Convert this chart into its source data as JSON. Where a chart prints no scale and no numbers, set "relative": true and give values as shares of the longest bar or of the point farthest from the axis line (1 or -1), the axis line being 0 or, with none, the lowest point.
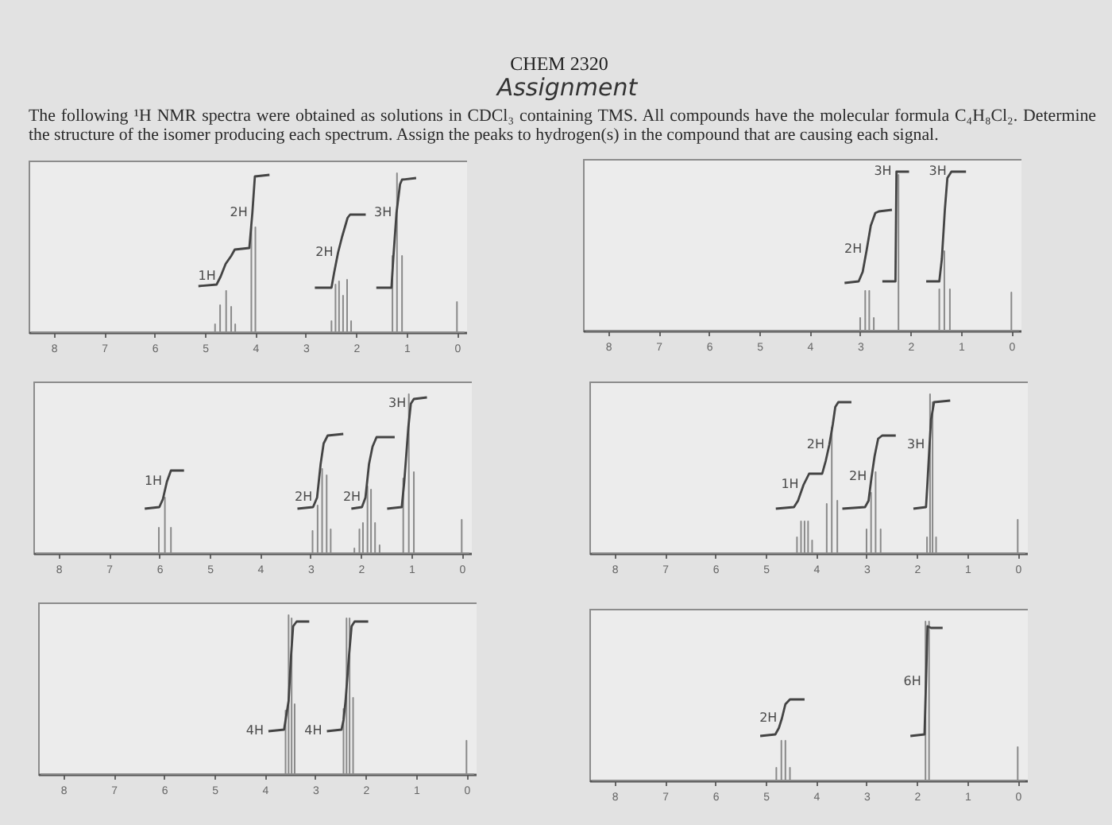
{
  "chart_data": [
    {
      "type": "other",
      "title": "CHEM 2320",
      "subtitle": "Assignment",
      "annotations": [
        "The following ¹H NMR spectra were obtained as solutions in CDCl₃ containing TMS. All compounds have the molecular formula C₄H₈Cl₂. Determine the structure of the isomer producing each spectrum. Assign the peaks to hydrogen(s) in the compound that are causing each signal."
      ]
    },
    {
      "type": "line",
      "relative": true,
      "xlim": [
        8.5,
        -0.2
      ],
      "xticks": [
        8,
        7,
        6,
        5,
        4,
        3,
        2,
        1,
        0
      ],
      "series": [
        {
          "color": "#8a8a8a",
          "x": [
            8.45,
            4.8,
            4.8,
            4.8,
            4.7,
            4.7,
            4.7,
            4.58,
            4.58,
            4.58,
            4.48,
            4.48,
            4.48,
            4.4,
            4.4,
            4.4,
            4.08,
            4.08,
            4.08,
            4.0,
            4.0,
            4.0,
            2.49,
            2.49,
            2.49,
            2.41,
            2.41,
            2.41,
            2.34,
            2.34,
            2.34,
            2.26,
            2.26,
            2.26,
            2.18,
            2.18,
            2.18,
            2.1,
            2.1,
            2.1,
            1.28,
            1.28,
            1.28,
            1.19,
            1.19,
            1.19,
            1.09,
            1.09,
            1.09,
            0,
            0,
            0,
            -0.15
          ],
          "values": [
            0,
            0,
            0.05,
            0,
            0,
            0.17,
            0,
            0,
            0.26,
            0,
            0,
            0.16,
            0,
            0,
            0.05,
            0,
            0,
            0.66,
            0,
            0,
            0.66,
            0,
            0,
            0.07,
            0,
            0,
            0.3,
            0,
            0,
            0.32,
            0,
            0,
            0.23,
            0,
            0,
            0.33,
            0,
            0,
            0.07,
            0,
            0,
            0.48,
            0,
            0,
            1,
            0,
            0,
            0.48,
            0,
            0,
            0.19,
            0,
            0
          ]
        },
        {
          "color": "#444444",
          "x": [
            5.13,
            4.77,
            4.69,
            4.59,
            4.48,
            4.41,
            4.12,
            4.06,
            4.01,
            3.72
          ],
          "values": [
            0.29,
            0.3,
            0.35,
            0.43,
            0.48,
            0.52,
            0.53,
            0.75,
            0.98,
            0.99
          ]
        },
        {
          "color": "#444444",
          "x": [
            2.82,
            2.49,
            2.44,
            2.36,
            2.28,
            2.17,
            2.12,
            1.81
          ],
          "values": [
            0.28,
            0.28,
            0.37,
            0.5,
            0.6,
            0.72,
            0.74,
            0.74
          ]
        },
        {
          "color": "#444444",
          "x": [
            1.6,
            1.3,
            1.26,
            1.2,
            1.13,
            1.09,
            0.81
          ],
          "values": [
            0.28,
            0.28,
            0.48,
            0.75,
            0.93,
            0.96,
            0.97
          ]
        }
      ],
      "annotations": [
        {
          "text": "1H",
          "x": 4.69,
          "y": 0.35
        },
        {
          "text": "2H",
          "x": 4.06,
          "y": 0.75
        },
        {
          "text": "2H",
          "x": 2.36,
          "y": 0.5
        },
        {
          "text": "3H",
          "x": 1.2,
          "y": 0.75
        }
      ]
    },
    {
      "type": "line",
      "relative": true,
      "xlim": [
        8.5,
        -0.2
      ],
      "xticks": [
        8,
        7,
        6,
        5,
        4,
        3,
        2,
        1,
        0
      ],
      "series": [
        {
          "color": "#8a8a8a",
          "x": [
            8.45,
            3.0,
            3.0,
            3.0,
            2.9,
            2.9,
            2.9,
            2.82,
            2.82,
            2.82,
            2.73,
            2.73,
            2.73,
            2.24,
            2.24,
            2.24,
            1.43,
            1.43,
            1.43,
            1.33,
            1.33,
            1.33,
            1.22,
            1.22,
            1.22,
            0,
            0,
            0,
            -0.15
          ],
          "values": [
            0,
            0,
            0.08,
            0,
            0,
            0.25,
            0,
            0,
            0.25,
            0,
            0,
            0.08,
            0,
            0,
            0.98,
            0,
            0,
            0.26,
            0,
            0,
            0.5,
            0,
            0,
            0.26,
            0,
            0,
            0.24,
            0,
            0
          ]
        },
        {
          "color": "#444444",
          "x": [
            3.31,
            3.03,
            2.95,
            2.87,
            2.79,
            2.7,
            2.63,
            2.37
          ],
          "values": [
            0.3,
            0.31,
            0.37,
            0.51,
            0.66,
            0.74,
            0.75,
            0.76
          ]
        },
        {
          "color": "#444444",
          "x": [
            2.56,
            2.3,
            2.29,
            2.28,
            2.03
          ],
          "values": [
            0.31,
            0.31,
            0.66,
            1,
            1
          ]
        },
        {
          "color": "#444444",
          "x": [
            1.69,
            1.43,
            1.38,
            1.32,
            1.27,
            1.19,
            0.9
          ],
          "values": [
            0.31,
            0.31,
            0.45,
            0.76,
            0.96,
            1,
            1
          ]
        }
      ],
      "annotations": [
        {
          "text": "2H",
          "x": 2.87,
          "y": 0.51
        },
        {
          "text": "3H",
          "x": 2.28,
          "y": 1
        },
        {
          "text": "3H",
          "x": 1.19,
          "y": 1
        }
      ]
    },
    {
      "type": "line",
      "relative": true,
      "xlim": [
        8.5,
        -0.2
      ],
      "xticks": [
        8,
        7,
        6,
        5,
        4,
        3,
        2,
        1,
        0
      ],
      "series": [
        {
          "color": "#8a8a8a",
          "x": [
            8.45,
            6.01,
            6.01,
            6.01,
            5.89,
            5.89,
            5.89,
            5.77,
            5.77,
            5.77,
            2.96,
            2.96,
            2.96,
            2.86,
            2.86,
            2.86,
            2.77,
            2.77,
            2.77,
            2.68,
            2.68,
            2.68,
            2.6,
            2.6,
            2.6,
            2.13,
            2.13,
            2.13,
            2.03,
            2.03,
            2.03,
            1.96,
            1.96,
            1.96,
            1.87,
            1.87,
            1.87,
            1.8,
            1.8,
            1.8,
            1.72,
            1.72,
            1.72,
            1.63,
            1.63,
            1.63,
            1.16,
            1.16,
            1.16,
            1.05,
            1.05,
            1.05,
            0.95,
            0.95,
            0.95,
            0,
            0,
            0,
            -0.15
          ],
          "values": [
            0,
            0,
            0.16,
            0,
            0,
            0.35,
            0,
            0,
            0.16,
            0,
            0,
            0.14,
            0,
            0,
            0.3,
            0,
            0,
            0.53,
            0,
            0,
            0.49,
            0,
            0,
            0.15,
            0,
            0,
            0.03,
            0,
            0,
            0.15,
            0,
            0,
            0.19,
            0,
            0,
            0.42,
            0,
            0,
            0.4,
            0,
            0,
            0.19,
            0,
            0,
            0.05,
            0,
            0,
            0.47,
            0,
            0,
            1,
            0,
            0,
            0.51,
            0,
            0,
            0.21,
            0,
            0
          ]
        },
        {
          "color": "#444444",
          "x": [
            6.29,
            6.0,
            5.93,
            5.85,
            5.77,
            5.51
          ],
          "values": [
            0.28,
            0.29,
            0.34,
            0.45,
            0.52,
            0.52
          ]
        },
        {
          "color": "#444444",
          "x": [
            3.26,
            2.95,
            2.87,
            2.8,
            2.74,
            2.66,
            2.35
          ],
          "values": [
            0.28,
            0.29,
            0.35,
            0.56,
            0.69,
            0.74,
            0.75
          ]
        },
        {
          "color": "#444444",
          "x": [
            2.19,
            1.98,
            1.91,
            1.84,
            1.77,
            1.69,
            1.33
          ],
          "values": [
            0.28,
            0.29,
            0.35,
            0.56,
            0.67,
            0.73,
            0.73
          ]
        },
        {
          "color": "#444444",
          "x": [
            1.48,
            1.19,
            1.14,
            1.06,
            1.01,
            0.95,
            0.69
          ],
          "values": [
            0.28,
            0.29,
            0.45,
            0.79,
            0.94,
            0.97,
            0.98
          ]
        }
      ],
      "annotations": [
        {
          "text": "1H",
          "x": 5.85,
          "y": 0.45
        },
        {
          "text": "2H",
          "x": 2.87,
          "y": 0.35
        },
        {
          "text": "2H",
          "x": 1.91,
          "y": 0.35
        },
        {
          "text": "3H",
          "x": 1.01,
          "y": 0.94
        }
      ]
    },
    {
      "type": "line",
      "relative": true,
      "xlim": [
        8.5,
        -0.2
      ],
      "xticks": [
        8,
        7,
        6,
        5,
        4,
        3,
        2,
        1,
        0
      ],
      "series": [
        {
          "color": "#8a8a8a",
          "x": [
            8.45,
            4.38,
            4.38,
            4.38,
            4.3,
            4.3,
            4.3,
            4.23,
            4.23,
            4.23,
            4.16,
            4.16,
            4.16,
            4.08,
            4.08,
            4.08,
            3.79,
            3.79,
            3.79,
            3.69,
            3.69,
            3.69,
            3.58,
            3.58,
            3.58,
            3.0,
            3.0,
            3.0,
            2.91,
            2.91,
            2.91,
            2.82,
            2.82,
            2.82,
            2.72,
            2.72,
            2.72,
            1.8,
            1.8,
            1.8,
            1.74,
            1.74,
            1.74,
            1.69,
            1.69,
            1.69,
            1.62,
            1.62,
            1.62,
            0,
            0,
            0,
            -0.15
          ],
          "values": [
            0,
            0,
            0.1,
            0,
            0,
            0.2,
            0,
            0,
            0.2,
            0,
            0,
            0.2,
            0,
            0,
            0.08,
            0,
            0,
            0.31,
            0,
            0,
            0.79,
            0,
            0,
            0.33,
            0,
            0,
            0.15,
            0,
            0,
            0.38,
            0,
            0,
            0.51,
            0,
            0,
            0.15,
            0,
            0,
            0.1,
            0,
            0,
            1,
            0,
            0,
            0.95,
            0,
            0,
            0.1,
            0,
            0,
            0.21,
            0,
            0
          ]
        },
        {
          "color": "#444444",
          "x": [
            4.8,
            4.44,
            4.36,
            4.25,
            4.14,
            4.04,
            3.88,
            3.81,
            3.74,
            3.67,
            3.62,
            3.56,
            3.3
          ],
          "values": [
            0.28,
            0.29,
            0.33,
            0.43,
            0.5,
            0.5,
            0.5,
            0.58,
            0.68,
            0.81,
            0.92,
            0.95,
            0.95
          ]
        },
        {
          "color": "#444444",
          "x": [
            3.48,
            3.03,
            2.96,
            2.9,
            2.84,
            2.77,
            2.69,
            2.42
          ],
          "values": [
            0.28,
            0.29,
            0.33,
            0.48,
            0.61,
            0.72,
            0.74,
            0.74
          ]
        },
        {
          "color": "#444444",
          "x": [
            2.07,
            1.82,
            1.79,
            1.75,
            1.72,
            1.66,
            1.34
          ],
          "values": [
            0.28,
            0.29,
            0.45,
            0.68,
            0.84,
            0.95,
            0.96
          ]
        }
      ],
      "annotations": [
        {
          "text": "1H",
          "x": 4.25,
          "y": 0.43
        },
        {
          "text": "2H",
          "x": 3.74,
          "y": 0.68
        },
        {
          "text": "2H",
          "x": 2.9,
          "y": 0.48
        },
        {
          "text": "3H",
          "x": 1.75,
          "y": 0.68
        }
      ]
    },
    {
      "type": "line",
      "relative": true,
      "xlim": [
        8.5,
        -0.2
      ],
      "xticks": [
        8,
        7,
        6,
        5,
        4,
        3,
        2,
        1,
        0
      ],
      "series": [
        {
          "color": "#8a8a8a",
          "x": [
            8.45,
            3.59,
            3.59,
            3.59,
            3.53,
            3.53,
            3.53,
            3.47,
            3.47,
            3.47,
            3.41,
            3.41,
            3.41,
            2.44,
            2.44,
            2.44,
            2.38,
            2.38,
            2.38,
            2.32,
            2.32,
            2.32,
            2.25,
            2.25,
            2.25,
            0,
            0,
            0,
            -0.15
          ],
          "values": [
            0,
            0,
            0.4,
            0,
            0,
            1,
            0,
            0,
            0.98,
            0,
            0,
            0.44,
            0,
            0,
            0.41,
            0,
            0,
            0.98,
            0,
            0,
            0.98,
            0,
            0,
            0.48,
            0,
            0,
            0.21,
            0,
            0
          ]
        },
        {
          "color": "#444444",
          "x": [
            3.93,
            3.62,
            3.59,
            3.53,
            3.48,
            3.44,
            3.37,
            3.12
          ],
          "values": [
            0.27,
            0.28,
            0.34,
            0.46,
            0.75,
            0.93,
            0.96,
            0.96
          ]
        },
        {
          "color": "#444444",
          "x": [
            2.77,
            2.48,
            2.44,
            2.4,
            2.33,
            2.28,
            2.22,
            1.95
          ],
          "values": [
            0.27,
            0.28,
            0.34,
            0.46,
            0.75,
            0.93,
            0.96,
            0.96
          ]
        }
      ],
      "annotations": [
        {
          "text": "4H",
          "x": 3.93,
          "y": 0.27
        },
        {
          "text": "4H",
          "x": 2.77,
          "y": 0.27
        }
      ]
    },
    {
      "type": "line",
      "relative": true,
      "xlim": [
        8.5,
        -0.2
      ],
      "xticks": [
        8,
        7,
        6,
        5,
        4,
        3,
        2,
        1,
        0
      ],
      "series": [
        {
          "color": "#8a8a8a",
          "x": [
            8.45,
            4.79,
            4.79,
            4.79,
            4.69,
            4.69,
            4.69,
            4.61,
            4.61,
            4.61,
            4.52,
            4.52,
            4.52,
            1.83,
            1.83,
            1.83,
            1.76,
            1.76,
            1.76,
            0,
            0,
            0,
            -0.15
          ],
          "values": [
            0,
            0,
            0.08,
            0,
            0,
            0.25,
            0,
            0,
            0.25,
            0,
            0,
            0.08,
            0,
            0,
            1,
            0,
            0,
            1,
            0,
            0,
            0.21,
            0,
            0
          ]
        },
        {
          "color": "#444444",
          "x": [
            5.11,
            4.81,
            4.74,
            4.68,
            4.61,
            4.52,
            4.23
          ],
          "values": [
            0.28,
            0.29,
            0.33,
            0.39,
            0.48,
            0.51,
            0.51
          ]
        },
        {
          "color": "#444444",
          "x": [
            2.13,
            1.85,
            1.82,
            1.79,
            1.72,
            1.49
          ],
          "values": [
            0.28,
            0.29,
            0.62,
            0.97,
            0.96,
            0.96
          ]
        }
      ],
      "annotations": [
        {
          "text": "2H",
          "x": 4.68,
          "y": 0.39
        },
        {
          "text": "6H",
          "x": 1.82,
          "y": 0.62
        }
      ]
    }
  ]
}
